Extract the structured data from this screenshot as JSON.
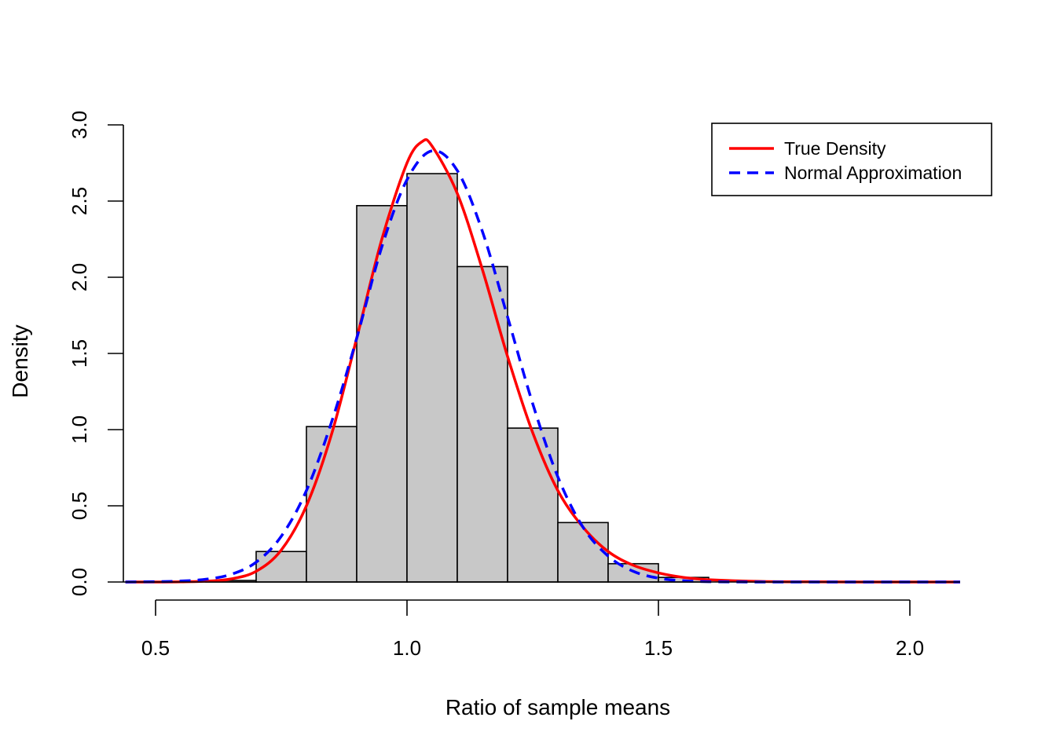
{
  "chart_data": {
    "type": "bar",
    "title": "",
    "xlabel": "Ratio of sample means",
    "ylabel": "Density",
    "xlim": [
      0.44,
      2.1
    ],
    "ylim": [
      0,
      3.0
    ],
    "x_ticks": [
      0.5,
      1.0,
      1.5,
      2.0
    ],
    "x_tick_labels": [
      "0.5",
      "1.0",
      "1.5",
      "2.0"
    ],
    "y_ticks": [
      0,
      0.5,
      1.0,
      1.5,
      2.0,
      2.5,
      3.0
    ],
    "y_tick_labels": [
      "0.0",
      "0.5",
      "1.0",
      "1.5",
      "2.0",
      "2.5",
      "3.0"
    ],
    "grid": false,
    "legend_position": "top-right",
    "histogram": {
      "bin_edges": [
        0.5,
        0.6,
        0.7,
        0.8,
        0.9,
        1.0,
        1.1,
        1.2,
        1.3,
        1.4,
        1.5,
        1.6
      ],
      "densities": [
        0.0,
        0.01,
        0.2,
        1.02,
        2.47,
        2.68,
        2.07,
        1.01,
        0.39,
        0.12,
        0.03
      ],
      "fill_color": "#c8c8c8"
    },
    "series": [
      {
        "name": "True Density",
        "color": "#ff0000",
        "dash": "solid",
        "x": [
          0.44,
          0.5,
          0.55,
          0.6,
          0.65,
          0.7,
          0.75,
          0.8,
          0.85,
          0.9,
          0.95,
          1.0,
          1.03,
          1.05,
          1.1,
          1.15,
          1.2,
          1.25,
          1.3,
          1.35,
          1.4,
          1.45,
          1.5,
          1.55,
          1.6,
          1.7,
          1.8,
          2.0,
          2.1
        ],
        "y": [
          0.0,
          0.0,
          0.001,
          0.005,
          0.02,
          0.07,
          0.21,
          0.5,
          0.97,
          1.6,
          2.25,
          2.75,
          2.89,
          2.86,
          2.55,
          2.05,
          1.48,
          0.98,
          0.6,
          0.36,
          0.2,
          0.11,
          0.06,
          0.03,
          0.015,
          0.004,
          0.001,
          0.0,
          0.0
        ]
      },
      {
        "name": "Normal Approximation",
        "color": "#0000ff",
        "dash": "dashed",
        "x": [
          0.44,
          0.5,
          0.55,
          0.6,
          0.65,
          0.7,
          0.75,
          0.8,
          0.85,
          0.9,
          0.95,
          1.0,
          1.05,
          1.1,
          1.15,
          1.2,
          1.25,
          1.3,
          1.35,
          1.4,
          1.45,
          1.5,
          1.55,
          1.6,
          1.7,
          1.8,
          2.0,
          2.1
        ],
        "y": [
          0.0,
          0.002,
          0.006,
          0.018,
          0.05,
          0.13,
          0.3,
          0.6,
          1.05,
          1.6,
          2.2,
          2.64,
          2.83,
          2.7,
          2.3,
          1.74,
          1.17,
          0.69,
          0.36,
          0.17,
          0.07,
          0.025,
          0.008,
          0.002,
          0.0,
          0.0,
          0.0,
          0.0
        ]
      }
    ]
  }
}
